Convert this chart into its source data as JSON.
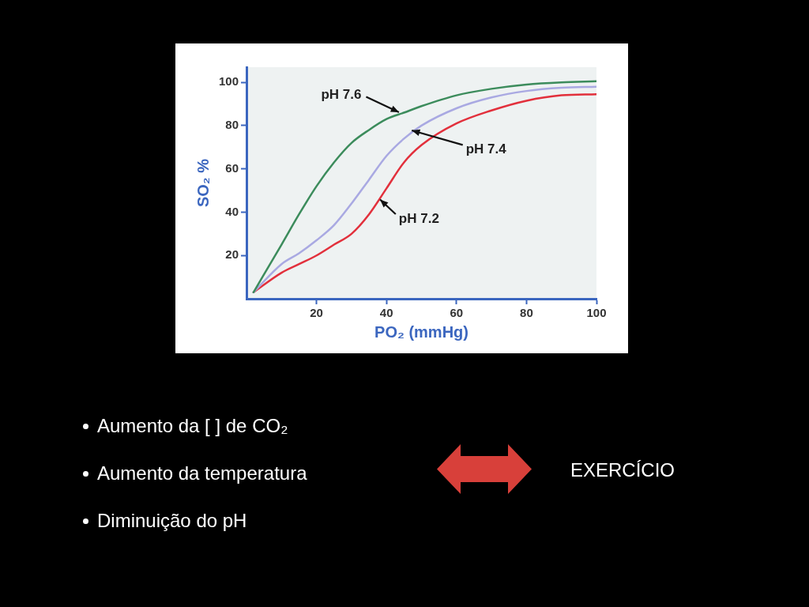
{
  "chart_data": {
    "type": "line",
    "xlabel": "PO₂ (mmHg)",
    "ylabel": "SO₂ %",
    "x": [
      2,
      10,
      15,
      20,
      25,
      30,
      35,
      40,
      45,
      50,
      60,
      70,
      80,
      90,
      100
    ],
    "series": [
      {
        "color": "#3c8c5c",
        "values": [
          3,
          25,
          39,
          52,
          63,
          72,
          78,
          83,
          86,
          89,
          94,
          97,
          99,
          100,
          100.5
        ]
      },
      {
        "color": "#a9a9e2",
        "values": [
          3,
          16,
          21,
          27,
          34,
          44,
          55,
          66,
          74,
          80,
          88,
          93,
          96,
          97.5,
          98
        ]
      },
      {
        "color": "#e2303c",
        "values": [
          3,
          12,
          16,
          20,
          25,
          30,
          39,
          51,
          63,
          71,
          81,
          87,
          91.5,
          94,
          94.5
        ]
      }
    ],
    "xlim": [
      0,
      100
    ],
    "ylim": [
      0,
      107
    ],
    "xticks": [
      20,
      40,
      60,
      80,
      100
    ],
    "yticks": [
      20,
      40,
      60,
      80,
      100
    ],
    "grid": false,
    "legend": false,
    "marker": "none",
    "line_style": "solid",
    "annotations": [
      {
        "text": "pH 7.6",
        "x": 44,
        "y": 86
      },
      {
        "text": "pH 7.4",
        "x": 47,
        "y": 78
      },
      {
        "text": "pH 7.2",
        "x": 38,
        "y": 46
      },
      "Aumento da [ ] de CO₂",
      "Aumento da temperatura",
      "Diminuição do pH",
      "EXERCÍCIO"
    ]
  }
}
